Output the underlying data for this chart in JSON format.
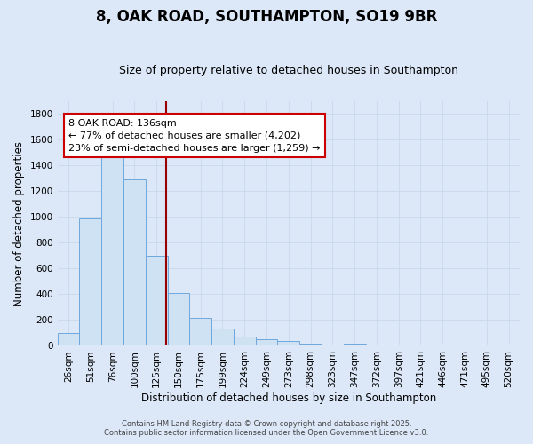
{
  "title": "8, OAK ROAD, SOUTHAMPTON, SO19 9BR",
  "subtitle": "Size of property relative to detached houses in Southampton",
  "xlabel": "Distribution of detached houses by size in Southampton",
  "ylabel": "Number of detached properties",
  "bar_labels": [
    "26sqm",
    "51sqm",
    "76sqm",
    "100sqm",
    "125sqm",
    "150sqm",
    "175sqm",
    "199sqm",
    "224sqm",
    "249sqm",
    "273sqm",
    "298sqm",
    "323sqm",
    "347sqm",
    "372sqm",
    "397sqm",
    "421sqm",
    "446sqm",
    "471sqm",
    "495sqm",
    "520sqm"
  ],
  "bar_values": [
    100,
    990,
    1500,
    1290,
    700,
    410,
    215,
    135,
    75,
    50,
    35,
    20,
    0,
    15,
    0,
    0,
    0,
    0,
    0,
    0,
    0
  ],
  "bar_color": "#cfe2f3",
  "bar_edge_color": "#6fa8dc",
  "ylim": [
    0,
    1900
  ],
  "yticks": [
    0,
    200,
    400,
    600,
    800,
    1000,
    1200,
    1400,
    1600,
    1800
  ],
  "vline_color": "#990000",
  "annotation_text": "8 OAK ROAD: 136sqm\n← 77% of detached houses are smaller (4,202)\n23% of semi-detached houses are larger (1,259) →",
  "annotation_box_color": "#ffffff",
  "annotation_box_edge": "#cc0000",
  "bg_color": "#dce8f8",
  "grid_color": "#c8d8ea",
  "footer1": "Contains HM Land Registry data © Crown copyright and database right 2025.",
  "footer2": "Contains public sector information licensed under the Open Government Licence v3.0.",
  "title_fontsize": 12,
  "subtitle_fontsize": 9,
  "annotation_fontsize": 8,
  "axis_label_fontsize": 8.5,
  "tick_fontsize": 7.5
}
